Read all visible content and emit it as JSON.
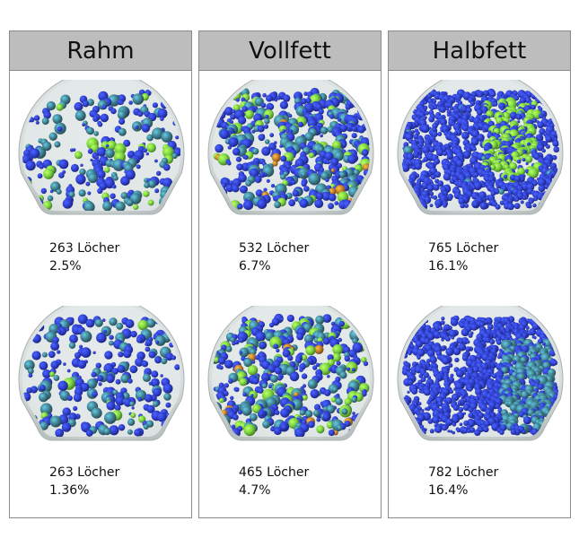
{
  "panels": [
    {
      "header": "Rahm",
      "samples": [
        {
          "holes": "263 Löcher",
          "percent": "2.5%"
        },
        {
          "holes": "263 Löcher",
          "percent": "1.36%"
        }
      ]
    },
    {
      "header": "Vollfett",
      "samples": [
        {
          "holes": "532 Löcher",
          "percent": "6.7%"
        },
        {
          "holes": "465 Löcher",
          "percent": "4.7%"
        }
      ]
    },
    {
      "header": "Halbfett",
      "samples": [
        {
          "holes": "765 Löcher",
          "percent": "16.1%"
        },
        {
          "holes": "782 Löcher",
          "percent": "16.4%"
        }
      ]
    }
  ],
  "colors": {
    "header_bg": "#bdbdbd",
    "border": "#8a8a8a",
    "shell": "#d8dddd",
    "hole_blue": "#2f3fd0",
    "hole_teal": "#3f7f8f",
    "hole_green": "#77d23f",
    "hole_orange": "#c07a2a"
  }
}
